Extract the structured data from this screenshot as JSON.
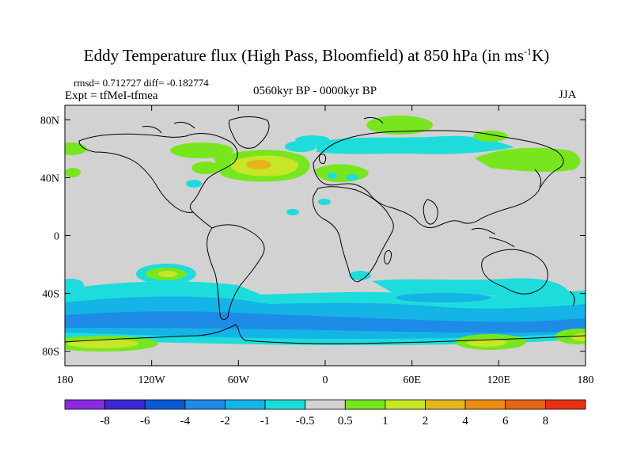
{
  "title_main": "Eddy Temperature flux (High Pass, Bloomfield) at 850 hPa (in ms",
  "title_sup": "-1",
  "title_tail": "K)",
  "stats": "rmsd= 0.712727 diff= -0.182774",
  "experiment": "Expt = tfMeI-tfmea",
  "period": "0560kyr BP - 0000kyr BP",
  "season": "JJA",
  "lat_ticks": [
    "80N",
    "40N",
    "0",
    "40S",
    "80S"
  ],
  "lon_ticks": [
    "180",
    "120W",
    "60W",
    "0",
    "60E",
    "120E",
    "180"
  ],
  "colorbar": {
    "labels": [
      "-8",
      "-6",
      "-4",
      "-2",
      "-1",
      "-0.5",
      "0.5",
      "1",
      "2",
      "4",
      "6",
      "8"
    ],
    "colors": [
      "#8a2be2",
      "#3c28d2",
      "#0a5ad6",
      "#1e8ce6",
      "#14b4e6",
      "#1edcdc",
      "#d2d2d2",
      "#78e61e",
      "#c8e628",
      "#e6b41e",
      "#eb8c14",
      "#e66414",
      "#e63214"
    ]
  },
  "colors": {
    "land_outline": "#000000",
    "neutral": "#d2d2d2"
  }
}
